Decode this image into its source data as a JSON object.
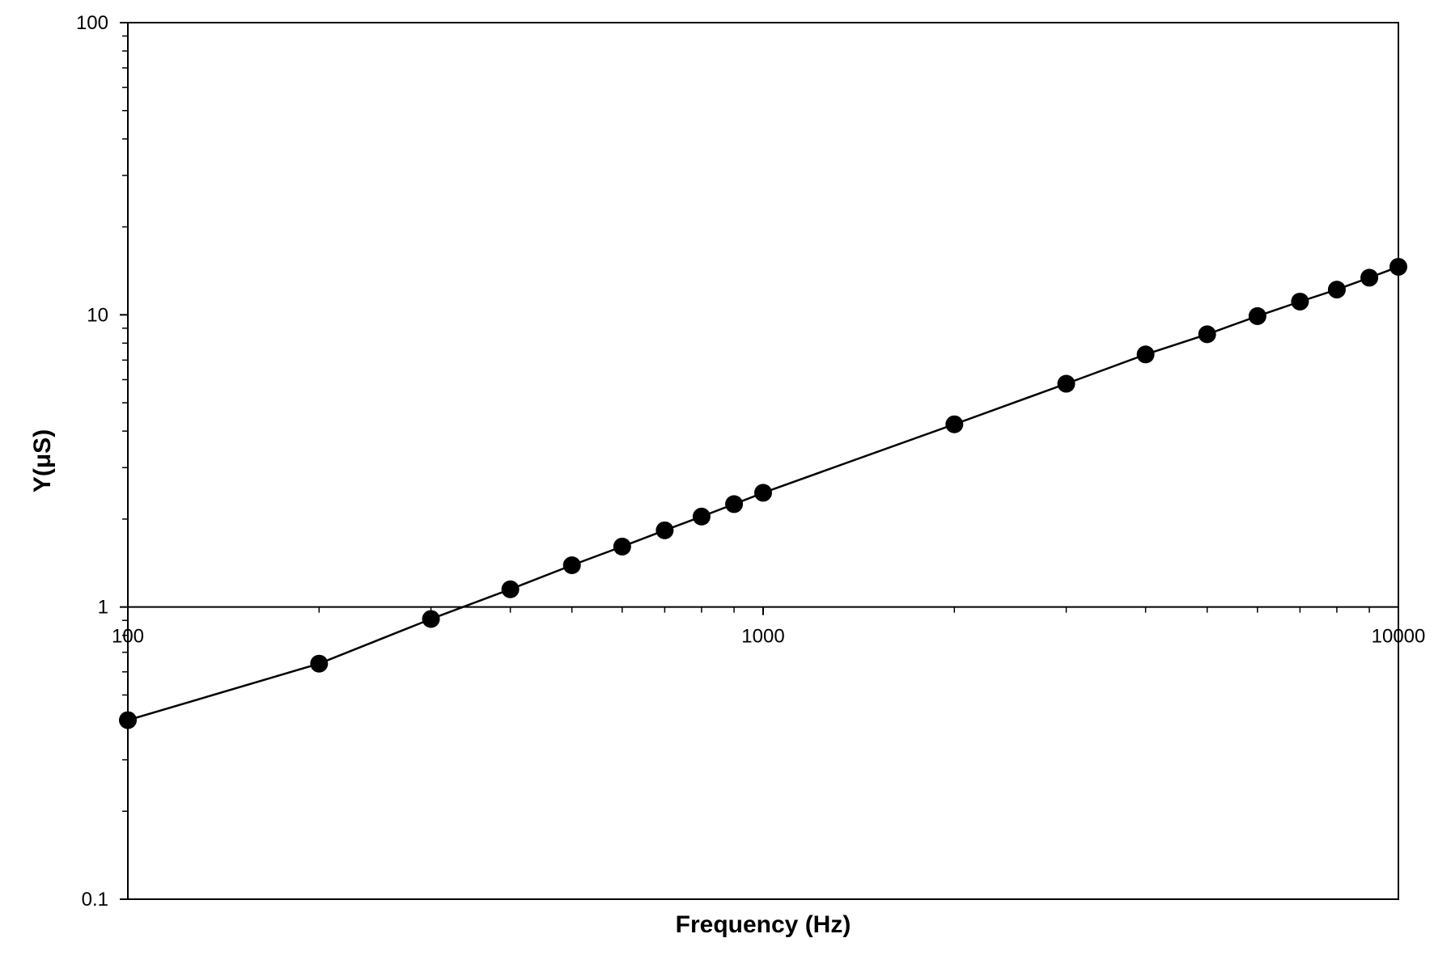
{
  "chart_data": {
    "type": "scatter",
    "title": "",
    "xlabel": "Frequency (Hz)",
    "ylabel": "Y(μS)",
    "x_scale": "log",
    "y_scale": "log",
    "xlim": [
      100,
      10000
    ],
    "ylim": [
      0.1,
      100
    ],
    "x_ticks": [
      100,
      1000,
      10000
    ],
    "x_tick_labels": [
      "100",
      "1000",
      "10000"
    ],
    "y_ticks": [
      0.1,
      1,
      10,
      100
    ],
    "y_tick_labels": [
      "0.1",
      "1",
      "10",
      "100"
    ],
    "grid": false,
    "legend": false,
    "series": [
      {
        "marker": "filled-circle",
        "connected": true,
        "color": "#000000",
        "x": [
          100,
          200,
          300,
          400,
          500,
          600,
          700,
          800,
          900,
          1000,
          2000,
          3000,
          4000,
          5000,
          6000,
          7000,
          8000,
          9000,
          10000
        ],
        "y": [
          0.41,
          0.64,
          0.91,
          1.15,
          1.39,
          1.61,
          1.83,
          2.04,
          2.25,
          2.46,
          4.22,
          5.81,
          7.32,
          8.58,
          9.9,
          11.1,
          12.2,
          13.4,
          14.6
        ]
      }
    ]
  }
}
